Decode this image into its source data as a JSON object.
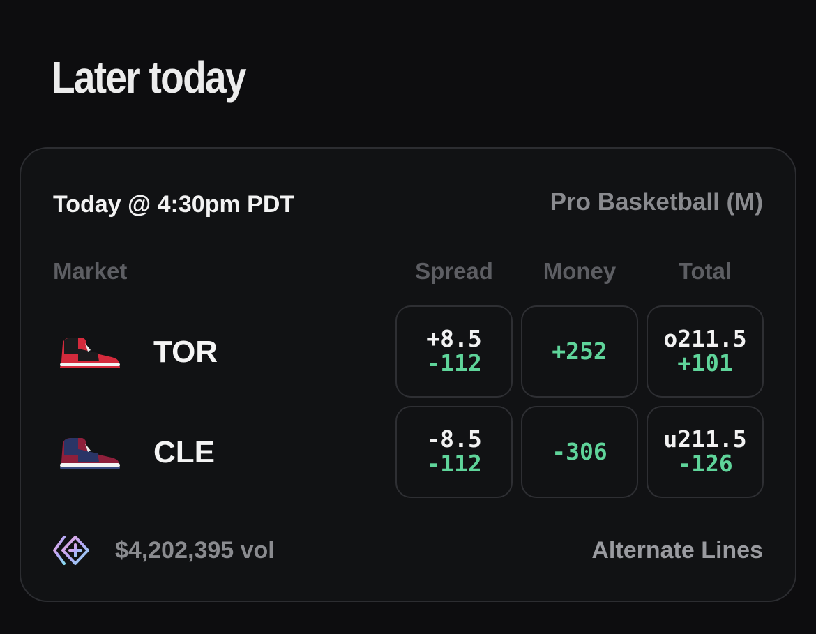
{
  "section": {
    "title": "Later today"
  },
  "event": {
    "time": "Today @ 4:30pm PDT",
    "league": "Pro Basketball (M)",
    "headers": {
      "market": "Market",
      "spread": "Spread",
      "money": "Money",
      "total": "Total"
    },
    "teams": [
      {
        "name": "TOR",
        "icon": "red-black-sneaker-icon",
        "spread": {
          "line": "+8.5",
          "price": "-112"
        },
        "money": {
          "price": "+252"
        },
        "total": {
          "line": "o211.5",
          "price": "+101"
        }
      },
      {
        "name": "CLE",
        "icon": "burgundy-navy-sneaker-icon",
        "spread": {
          "line": "-8.5",
          "price": "-112"
        },
        "money": {
          "price": "-306"
        },
        "total": {
          "line": "u211.5",
          "price": "-126"
        }
      }
    ],
    "footer": {
      "volume": "$4,202,395 vol",
      "volume_icon": "diamond-plus-icon",
      "alternate_lines": "Alternate Lines"
    }
  },
  "colors": {
    "background": "#0d0d0f",
    "card": "#111214",
    "border": "#2e2f33",
    "price_green": "#5fd49a",
    "muted_text": "#8a8b8f"
  }
}
